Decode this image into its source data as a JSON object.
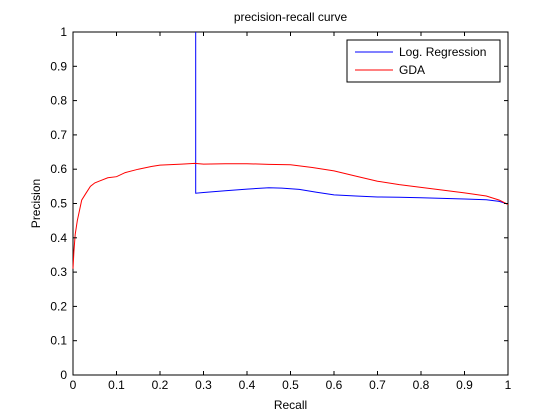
{
  "chart_data": {
    "type": "line",
    "title": "precision-recall curve",
    "xlabel": "Recall",
    "ylabel": "Precision",
    "xlim": [
      0,
      1
    ],
    "ylim": [
      0,
      1
    ],
    "xticks": [
      "0",
      "0.1",
      "0.2",
      "0.3",
      "0.4",
      "0.5",
      "0.6",
      "0.7",
      "0.8",
      "0.9",
      "1"
    ],
    "yticks": [
      "0",
      "0.1",
      "0.2",
      "0.3",
      "0.4",
      "0.5",
      "0.6",
      "0.7",
      "0.8",
      "0.9",
      "1"
    ],
    "grid": false,
    "legend_position": "top-right",
    "series": [
      {
        "name": "Log. Regression",
        "color": "#0000ff",
        "x": [
          0.282,
          0.282,
          0.282,
          0.3,
          0.35,
          0.4,
          0.45,
          0.48,
          0.52,
          0.56,
          0.6,
          0.65,
          0.7,
          0.75,
          0.8,
          0.85,
          0.9,
          0.95,
          0.98,
          1.0
        ],
        "y": [
          1.0,
          0.75,
          0.53,
          0.532,
          0.537,
          0.542,
          0.546,
          0.545,
          0.541,
          0.533,
          0.525,
          0.522,
          0.519,
          0.518,
          0.517,
          0.515,
          0.513,
          0.511,
          0.506,
          0.498
        ]
      },
      {
        "name": "GDA",
        "color": "#ff0000",
        "x": [
          0.0,
          0.002,
          0.005,
          0.01,
          0.015,
          0.02,
          0.03,
          0.04,
          0.05,
          0.06,
          0.08,
          0.1,
          0.12,
          0.15,
          0.18,
          0.2,
          0.25,
          0.28,
          0.3,
          0.35,
          0.4,
          0.45,
          0.5,
          0.55,
          0.6,
          0.65,
          0.7,
          0.75,
          0.8,
          0.85,
          0.9,
          0.95,
          0.98,
          1.0
        ],
        "y": [
          0.31,
          0.36,
          0.41,
          0.45,
          0.48,
          0.51,
          0.53,
          0.55,
          0.56,
          0.565,
          0.575,
          0.578,
          0.59,
          0.6,
          0.608,
          0.612,
          0.615,
          0.617,
          0.615,
          0.616,
          0.616,
          0.614,
          0.613,
          0.605,
          0.595,
          0.58,
          0.565,
          0.555,
          0.547,
          0.539,
          0.531,
          0.522,
          0.51,
          0.497
        ]
      }
    ]
  }
}
